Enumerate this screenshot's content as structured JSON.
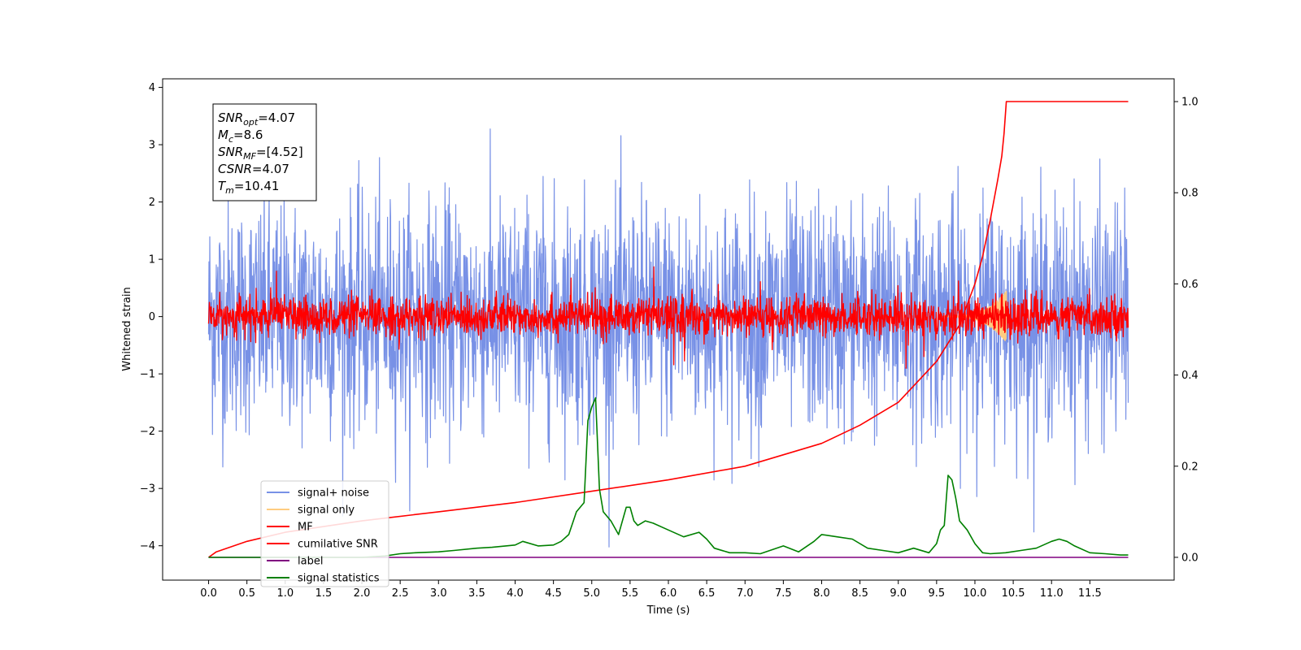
{
  "chart_data": {
    "type": "line",
    "xlabel": "Time (s)",
    "ylabel": "Whitened strain",
    "xlim": [
      -0.6,
      12.6
    ],
    "ylim": [
      -4.6,
      4.15
    ],
    "y2lim": [
      -0.05,
      1.05
    ],
    "x_ticks": [
      "0.0",
      "0.5",
      "1.0",
      "1.5",
      "2.0",
      "2.5",
      "3.0",
      "3.5",
      "4.0",
      "4.5",
      "5.0",
      "5.5",
      "6.0",
      "6.5",
      "7.0",
      "7.5",
      "8.0",
      "8.5",
      "9.0",
      "9.5",
      "10.0",
      "10.5",
      "11.0",
      "11.5"
    ],
    "y_ticks": [
      "4",
      "3",
      "2",
      "1",
      "0",
      "−1",
      "−2",
      "−3",
      "−4"
    ],
    "y2_ticks": [
      "1.0",
      "0.8",
      "0.6",
      "0.4",
      "0.2",
      "0.0"
    ],
    "grid": false,
    "legend_position": "lower-left",
    "annotation": {
      "lines": [
        {
          "var": "SNR",
          "sub": "opt",
          "val": "=4.07"
        },
        {
          "var": "M",
          "sub": "c",
          "val": "=8.6"
        },
        {
          "var": "SNR",
          "sub": "MF",
          "val": "=[4.52]"
        },
        {
          "var": "CSNR",
          "sub": "",
          "val": "=4.07"
        },
        {
          "var": "T",
          "sub": "m",
          "val": "=10.41"
        }
      ]
    },
    "series": [
      {
        "name": "signal+ noise",
        "color": "#7891e6",
        "axis": "left",
        "kind": "noise",
        "sigma": 1.0,
        "x_range": [
          0,
          12
        ],
        "desc": "whitened strain time series"
      },
      {
        "name": "signal only",
        "color": "#ffcc80",
        "axis": "left",
        "kind": "chirp",
        "peak_time": 10.41,
        "peak_value": 0.45
      },
      {
        "name": "MF",
        "color": "#ff0000",
        "axis": "left",
        "kind": "noise",
        "sigma": 0.17,
        "x_range": [
          0,
          12
        ]
      },
      {
        "name": "cumilative SNR",
        "color": "#ff0000",
        "axis": "right",
        "x": [
          0.0,
          0.1,
          0.5,
          1,
          2,
          3,
          4,
          5,
          6,
          7,
          8,
          8.5,
          9,
          9.5,
          9.8,
          10.0,
          10.1,
          10.2,
          10.3,
          10.35,
          10.38,
          10.41,
          11.0,
          12.0
        ],
        "values": [
          0.0,
          0.012,
          0.035,
          0.055,
          0.08,
          0.1,
          0.12,
          0.145,
          0.17,
          0.2,
          0.25,
          0.29,
          0.34,
          0.43,
          0.51,
          0.6,
          0.66,
          0.74,
          0.83,
          0.88,
          0.93,
          1.0,
          1.0,
          1.0
        ]
      },
      {
        "name": "label",
        "color": "#800080",
        "axis": "right",
        "x": [
          0,
          12
        ],
        "values": [
          0.0,
          0.0
        ]
      },
      {
        "name": "signal statistics",
        "color": "#008000",
        "axis": "right",
        "x": [
          0.0,
          0.5,
          1.0,
          1.5,
          2.0,
          2.3,
          2.5,
          2.7,
          3.0,
          3.2,
          3.5,
          3.7,
          4.0,
          4.1,
          4.3,
          4.5,
          4.6,
          4.7,
          4.8,
          4.9,
          4.95,
          5.0,
          5.05,
          5.1,
          5.15,
          5.25,
          5.35,
          5.45,
          5.5,
          5.55,
          5.6,
          5.7,
          5.8,
          6.0,
          6.2,
          6.4,
          6.5,
          6.6,
          6.8,
          7.0,
          7.2,
          7.5,
          7.7,
          7.9,
          8.0,
          8.2,
          8.4,
          8.6,
          8.8,
          9.0,
          9.2,
          9.4,
          9.5,
          9.55,
          9.6,
          9.65,
          9.7,
          9.75,
          9.8,
          9.85,
          9.9,
          10.0,
          10.1,
          10.2,
          10.4,
          10.6,
          10.8,
          11.0,
          11.1,
          11.2,
          11.3,
          11.5,
          11.7,
          11.9,
          12.0
        ],
        "values": [
          0.0,
          0.0,
          0.0,
          0.0,
          0.0,
          0.003,
          0.008,
          0.01,
          0.012,
          0.015,
          0.02,
          0.022,
          0.027,
          0.035,
          0.025,
          0.027,
          0.035,
          0.05,
          0.1,
          0.12,
          0.3,
          0.33,
          0.35,
          0.15,
          0.1,
          0.08,
          0.05,
          0.11,
          0.11,
          0.08,
          0.07,
          0.08,
          0.075,
          0.06,
          0.045,
          0.055,
          0.04,
          0.02,
          0.01,
          0.01,
          0.008,
          0.025,
          0.012,
          0.035,
          0.05,
          0.045,
          0.04,
          0.02,
          0.015,
          0.01,
          0.02,
          0.01,
          0.03,
          0.06,
          0.07,
          0.18,
          0.17,
          0.13,
          0.08,
          0.07,
          0.06,
          0.03,
          0.01,
          0.008,
          0.01,
          0.015,
          0.02,
          0.035,
          0.04,
          0.035,
          0.025,
          0.01,
          0.008,
          0.005,
          0.005
        ]
      }
    ]
  }
}
